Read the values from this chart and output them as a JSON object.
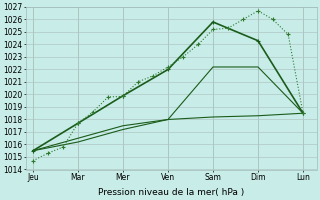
{
  "xlabel": "Pression niveau de la mer( hPa )",
  "ylim": [
    1014,
    1027
  ],
  "yticks": [
    1014,
    1015,
    1016,
    1017,
    1018,
    1019,
    1020,
    1021,
    1022,
    1023,
    1024,
    1025,
    1026,
    1027
  ],
  "xtick_labels": [
    "Jeu",
    "Mar",
    "Mer",
    "Ven",
    "Sam",
    "Dim",
    "Lun"
  ],
  "background_color": "#c8ece8",
  "grid_color": "#b0c8c4",
  "series_dotted": {
    "x": [
      0,
      0.33,
      0.67,
      1.0,
      1.33,
      1.67,
      2.0,
      2.33,
      2.67,
      3.0,
      3.33,
      3.67,
      4.0,
      4.33,
      4.67,
      5.0,
      5.33,
      5.67,
      6.0
    ],
    "y": [
      1014.7,
      1015.3,
      1015.8,
      1017.7,
      1018.6,
      1019.8,
      1019.85,
      1021.0,
      1021.5,
      1022.2,
      1023.0,
      1024.0,
      1025.2,
      1025.3,
      1026.0,
      1026.7,
      1026.0,
      1024.8,
      1018.5
    ],
    "color": "#2d7a2d",
    "lw": 0.8
  },
  "series_solid": [
    {
      "x": [
        0,
        1,
        2,
        3,
        4,
        5,
        6
      ],
      "y": [
        1015.5,
        1017.7,
        1019.9,
        1022.0,
        1025.8,
        1024.3,
        1018.5
      ],
      "color": "#1a5c1a",
      "lw": 1.2,
      "marker": true
    },
    {
      "x": [
        0,
        1,
        2,
        3,
        4,
        5,
        6
      ],
      "y": [
        1015.5,
        1016.5,
        1017.5,
        1018.0,
        1018.2,
        1018.3,
        1018.5
      ],
      "color": "#1a5c1a",
      "lw": 0.8,
      "marker": false
    },
    {
      "x": [
        0,
        1,
        2,
        3,
        4,
        5,
        6
      ],
      "y": [
        1015.5,
        1016.2,
        1017.2,
        1018.0,
        1022.2,
        1022.2,
        1018.5
      ],
      "color": "#1a5c1a",
      "lw": 0.8,
      "marker": false
    }
  ]
}
